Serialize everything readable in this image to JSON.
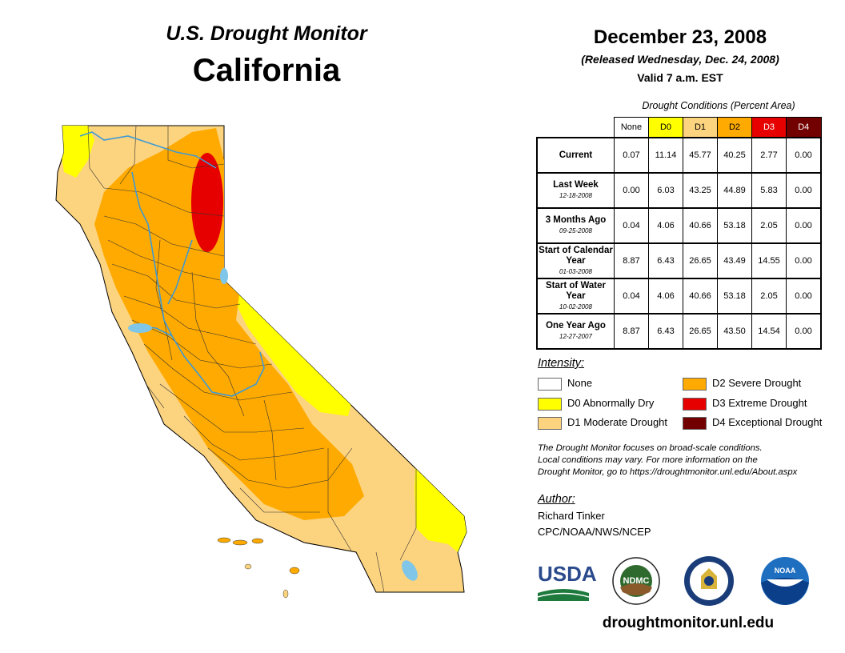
{
  "header": {
    "monitor_title": "U.S. Drought Monitor",
    "state_name": "California",
    "date": "December 23, 2008",
    "released": "(Released Wednesday, Dec. 24, 2008)",
    "valid": "Valid 7 a.m. EST"
  },
  "table": {
    "caption": "Drought Conditions (Percent Area)",
    "columns": [
      "None",
      "D0",
      "D1",
      "D2",
      "D3",
      "D4"
    ],
    "column_colors": [
      "#ffffff",
      "#ffff00",
      "#fcd37f",
      "#ffaa00",
      "#e60000",
      "#730000"
    ],
    "rows": [
      {
        "label": "Current",
        "date": "",
        "values": [
          "0.07",
          "11.14",
          "45.77",
          "40.25",
          "2.77",
          "0.00"
        ]
      },
      {
        "label": "Last Week",
        "date": "12-18-2008",
        "values": [
          "0.00",
          "6.03",
          "43.25",
          "44.89",
          "5.83",
          "0.00"
        ]
      },
      {
        "label": "3 Months Ago",
        "date": "09-25-2008",
        "values": [
          "0.04",
          "4.06",
          "40.66",
          "53.18",
          "2.05",
          "0.00"
        ]
      },
      {
        "label": "Start of Calendar Year",
        "date": "01-03-2008",
        "values": [
          "8.87",
          "6.43",
          "26.65",
          "43.49",
          "14.55",
          "0.00"
        ]
      },
      {
        "label": "Start of Water Year",
        "date": "10-02-2008",
        "values": [
          "0.04",
          "4.06",
          "40.66",
          "53.18",
          "2.05",
          "0.00"
        ]
      },
      {
        "label": "One Year Ago",
        "date": "12-27-2007",
        "values": [
          "8.87",
          "6.43",
          "26.65",
          "43.50",
          "14.54",
          "0.00"
        ]
      }
    ]
  },
  "legend": {
    "title": "Intensity:",
    "items": [
      {
        "label": "None",
        "color": "#ffffff"
      },
      {
        "label": "D0 Abnormally Dry",
        "color": "#ffff00"
      },
      {
        "label": "D1 Moderate Drought",
        "color": "#fcd37f"
      },
      {
        "label": "D2 Severe Drought",
        "color": "#ffaa00"
      },
      {
        "label": "D3 Extreme Drought",
        "color": "#e60000"
      },
      {
        "label": "D4 Exceptional Drought",
        "color": "#730000"
      }
    ]
  },
  "note": {
    "line1": "The Drought Monitor focuses on broad-scale conditions.",
    "line2": "Local conditions may vary. For more information on the",
    "line3": "Drought Monitor, go to https://droughtmonitor.unl.edu/About.aspx"
  },
  "author": {
    "title": "Author:",
    "name": "Richard Tinker",
    "org": "CPC/NOAA/NWS/NCEP"
  },
  "logos": {
    "usda": "USDA",
    "ndmc": "NDMC",
    "noaa": "NOAA"
  },
  "footer": {
    "url": "droughtmonitor.unl.edu"
  },
  "colors": {
    "water": "#7fc6e8",
    "river": "#3d9ad6"
  }
}
